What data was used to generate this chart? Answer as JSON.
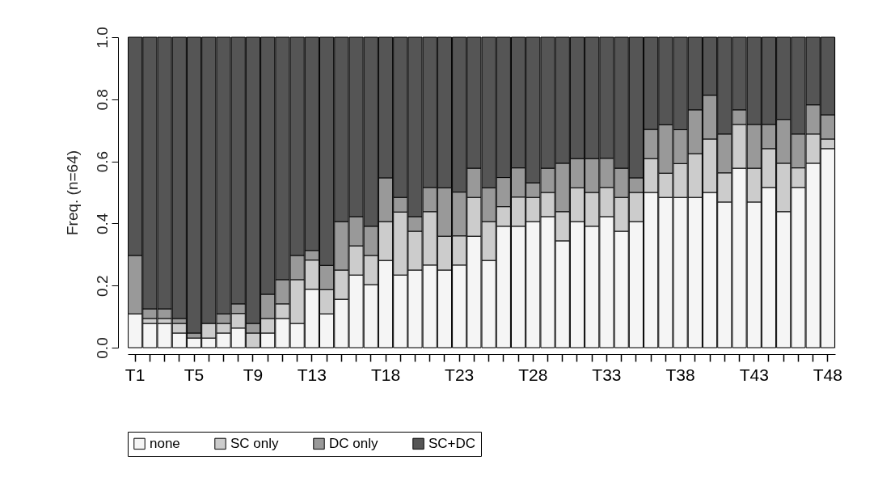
{
  "chart_data": {
    "type": "bar",
    "stacked": true,
    "ylabel": "Freq. (n=64)",
    "categories": [
      "T1",
      null,
      null,
      null,
      "T5",
      null,
      null,
      null,
      "T9",
      null,
      null,
      null,
      "T13",
      null,
      null,
      null,
      null,
      "T18",
      null,
      null,
      null,
      null,
      "T23",
      null,
      null,
      null,
      null,
      "T28",
      null,
      null,
      null,
      null,
      "T33",
      null,
      null,
      null,
      null,
      "T38",
      null,
      null,
      null,
      null,
      "T43",
      null,
      null,
      null,
      null,
      "T48"
    ],
    "series": [
      {
        "name": "none",
        "color": "#f5f5f5",
        "values": [
          0.109,
          0.078,
          0.078,
          0.047,
          0.031,
          0.031,
          0.047,
          0.063,
          0,
          0.047,
          0.094,
          0.078,
          0.188,
          0.109,
          0.156,
          0.234,
          0.203,
          0.281,
          0.234,
          0.25,
          0.266,
          0.25,
          0.266,
          0.359,
          0.281,
          0.391,
          0.391,
          0.406,
          0.422,
          0.344,
          0.406,
          0.391,
          0.422,
          0.375,
          0.406,
          0.5,
          0.484,
          0.484,
          0.484,
          0.5,
          0.469,
          0.578,
          0.469,
          0.516,
          0.438,
          0.516,
          0.594,
          0.641
        ]
      },
      {
        "name": "SC only",
        "color": "#cccccc",
        "values": [
          0,
          0.016,
          0.016,
          0.031,
          0,
          0.047,
          0.031,
          0.047,
          0.047,
          0.047,
          0.047,
          0.141,
          0.094,
          0.078,
          0.094,
          0.094,
          0.094,
          0.125,
          0.203,
          0.125,
          0.172,
          0.109,
          0.094,
          0.125,
          0.125,
          0.063,
          0.094,
          0.078,
          0.078,
          0.094,
          0.109,
          0.109,
          0.094,
          0.109,
          0.094,
          0.109,
          0.078,
          0.109,
          0.141,
          0.172,
          0.094,
          0.141,
          0.109,
          0.125,
          0.156,
          0.063,
          0.094,
          0.031
        ]
      },
      {
        "name": "DC only",
        "color": "#999999",
        "values": [
          0.188,
          0.031,
          0.031,
          0.016,
          0.016,
          0,
          0.031,
          0.031,
          0.031,
          0.078,
          0.078,
          0.078,
          0.031,
          0.078,
          0.156,
          0.094,
          0.094,
          0.141,
          0.047,
          0.047,
          0.078,
          0.156,
          0.141,
          0.094,
          0.109,
          0.094,
          0.094,
          0.047,
          0.078,
          0.156,
          0.094,
          0.109,
          0.094,
          0.094,
          0.047,
          0.094,
          0.156,
          0.109,
          0.141,
          0.141,
          0.125,
          0.047,
          0.141,
          0.078,
          0.141,
          0.109,
          0.094,
          0.078
        ]
      },
      {
        "name": "SC+DC",
        "color": "#555555",
        "values": [
          0.703,
          0.875,
          0.875,
          0.906,
          0.953,
          0.922,
          0.891,
          0.859,
          0.922,
          0.828,
          0.781,
          0.703,
          0.687,
          0.735,
          0.594,
          0.578,
          0.609,
          0.453,
          0.516,
          0.578,
          0.484,
          0.485,
          0.499,
          0.422,
          0.485,
          0.452,
          0.421,
          0.469,
          0.422,
          0.406,
          0.391,
          0.391,
          0.39,
          0.422,
          0.453,
          0.297,
          0.282,
          0.298,
          0.234,
          0.187,
          0.312,
          0.234,
          0.281,
          0.281,
          0.265,
          0.312,
          0.218,
          0.25
        ]
      }
    ],
    "ylim": [
      0,
      1
    ],
    "yticks": [
      {
        "value": 0,
        "label": "0.0"
      },
      {
        "value": 0.2,
        "label": "0.2"
      },
      {
        "value": 0.4,
        "label": "0.4"
      },
      {
        "value": 0.6,
        "label": "0.6"
      },
      {
        "value": 0.8,
        "label": "0.8"
      },
      {
        "value": 1,
        "label": "1.0"
      }
    ],
    "grid": false,
    "legend": "bottom"
  }
}
